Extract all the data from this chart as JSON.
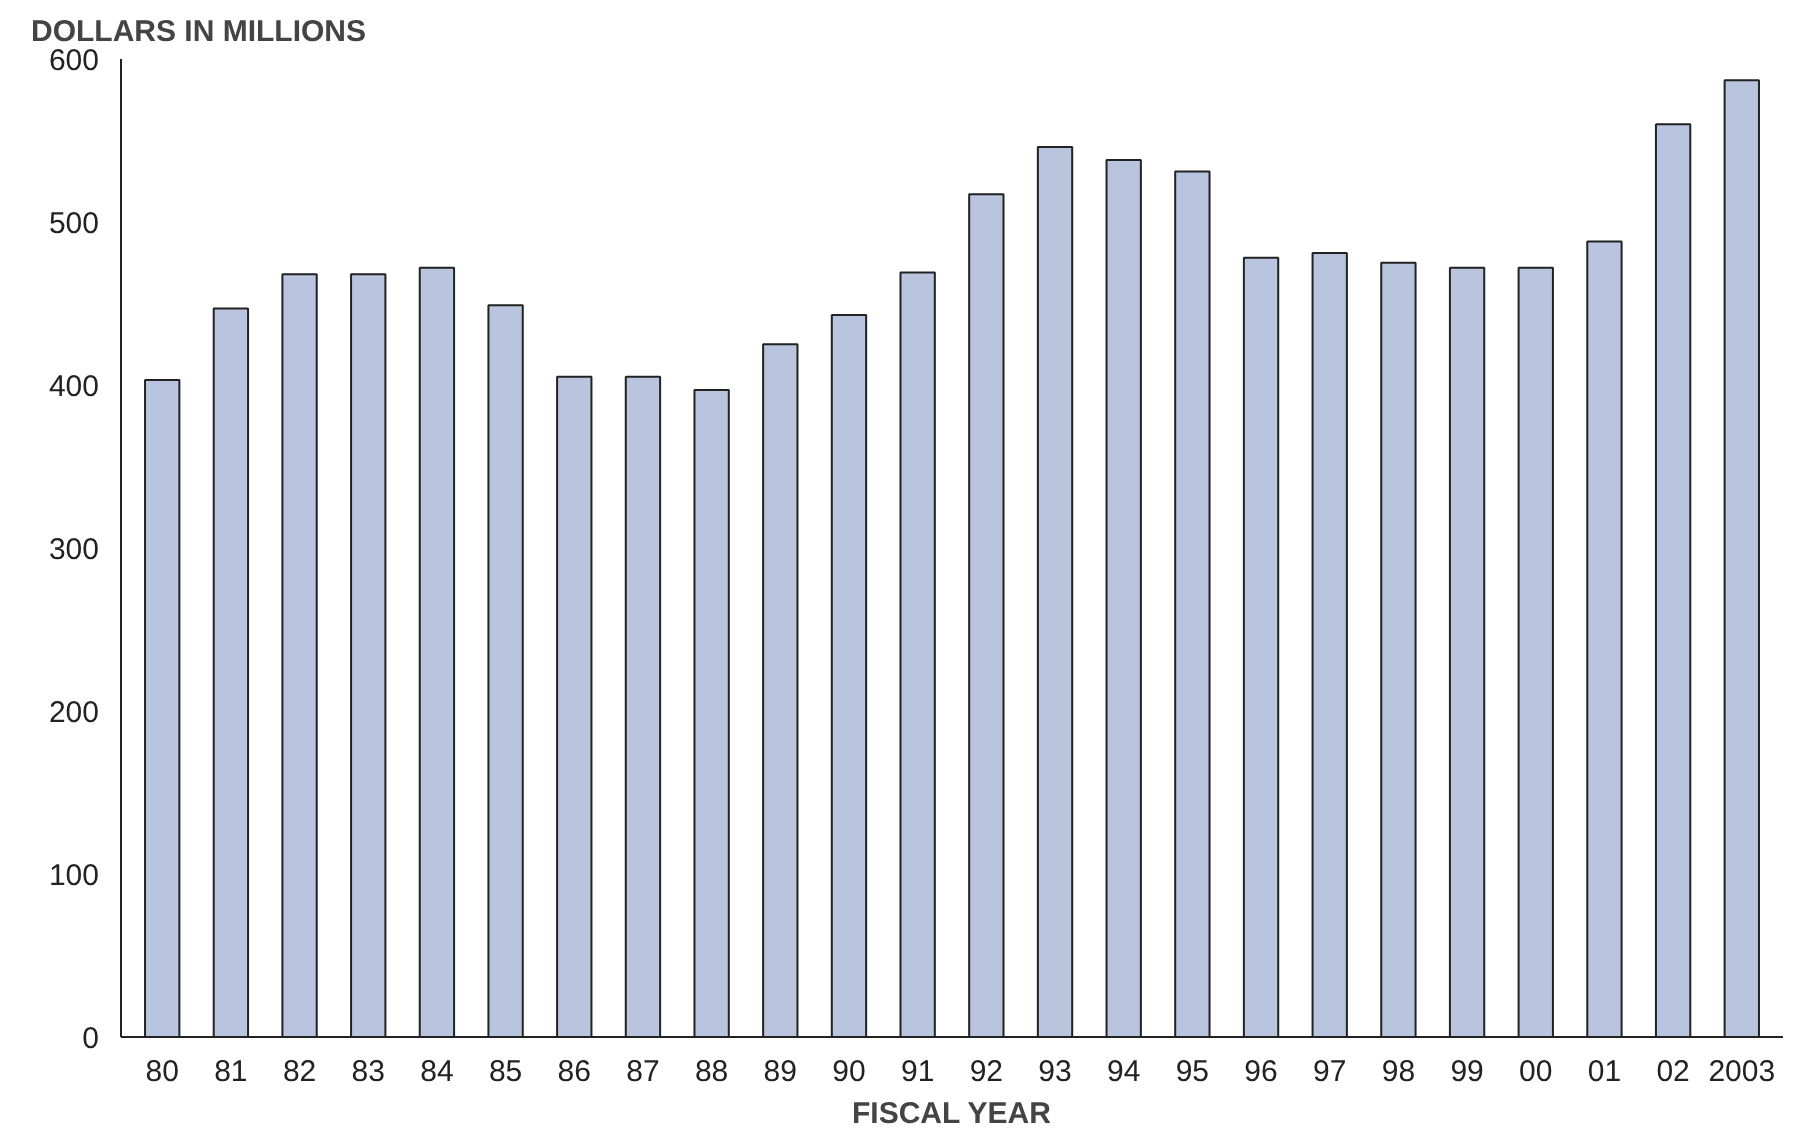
{
  "chart_data": {
    "type": "bar",
    "ylabel": "DOLLARS IN MILLIONS",
    "xlabel": "FISCAL YEAR",
    "categories": [
      "80",
      "81",
      "82",
      "83",
      "84",
      "85",
      "86",
      "87",
      "88",
      "89",
      "90",
      "91",
      "92",
      "93",
      "94",
      "95",
      "96",
      "97",
      "98",
      "99",
      "00",
      "01",
      "02",
      "2003"
    ],
    "values": [
      403,
      447,
      468,
      468,
      472,
      449,
      405,
      405,
      397,
      425,
      443,
      469,
      517,
      546,
      538,
      531,
      478,
      481,
      475,
      472,
      472,
      488,
      560,
      587
    ],
    "color": "#b9c5de",
    "ylim": [
      0,
      600
    ],
    "yticks": [
      0,
      100,
      200,
      300,
      400,
      500,
      600
    ],
    "grid": false
  }
}
